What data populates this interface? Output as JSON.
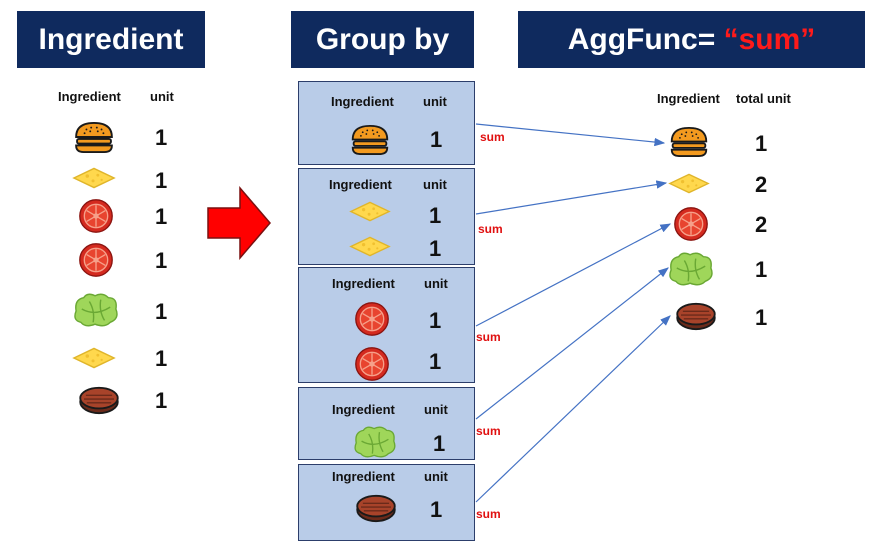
{
  "titles": {
    "left": "Ingredient",
    "middle": "Group by",
    "right_prefix": "AggFunc= ",
    "right_accent": "“sum”"
  },
  "left_table": {
    "col_ingredient": "Ingredient",
    "col_unit": "unit",
    "rows": [
      {
        "ingredient": "bun-icon",
        "unit": "1"
      },
      {
        "ingredient": "cheese-icon",
        "unit": "1"
      },
      {
        "ingredient": "tomato-icon",
        "unit": "1"
      },
      {
        "ingredient": "tomato-icon",
        "unit": "1"
      },
      {
        "ingredient": "lettuce-icon",
        "unit": "1"
      },
      {
        "ingredient": "cheese-icon",
        "unit": "1"
      },
      {
        "ingredient": "patty-icon",
        "unit": "1"
      }
    ]
  },
  "groups": [
    {
      "col_ingredient": "Ingredient",
      "col_unit": "unit",
      "agg": "sum",
      "items": [
        {
          "icon": "bun-icon",
          "unit": "1"
        }
      ]
    },
    {
      "col_ingredient": "Ingredient",
      "col_unit": "unit",
      "agg": "sum",
      "items": [
        {
          "icon": "cheese-icon",
          "unit": "1"
        },
        {
          "icon": "cheese-icon",
          "unit": "1"
        }
      ]
    },
    {
      "col_ingredient": "Ingredient",
      "col_unit": "unit",
      "agg": "sum",
      "items": [
        {
          "icon": "tomato-icon",
          "unit": "1"
        },
        {
          "icon": "tomato-icon",
          "unit": "1"
        }
      ]
    },
    {
      "col_ingredient": "Ingredient",
      "col_unit": "unit",
      "agg": "sum",
      "items": [
        {
          "icon": "lettuce-icon",
          "unit": "1"
        }
      ]
    },
    {
      "col_ingredient": "Ingredient",
      "col_unit": "unit",
      "agg": "sum",
      "items": [
        {
          "icon": "patty-icon",
          "unit": "1"
        }
      ]
    }
  ],
  "result_table": {
    "col_ingredient": "Ingredient",
    "col_total": "total unit",
    "rows": [
      {
        "ingredient": "bun-icon",
        "total": "1"
      },
      {
        "ingredient": "cheese-icon",
        "total": "2"
      },
      {
        "ingredient": "tomato-icon",
        "total": "2"
      },
      {
        "ingredient": "lettuce-icon",
        "total": "1"
      },
      {
        "ingredient": "patty-icon",
        "total": "1"
      }
    ]
  },
  "colors": {
    "title_bg": "#0f2a5e",
    "accent": "#ff1a1a",
    "group_bg": "#b9cce8",
    "arrow_line": "#4472c4",
    "big_arrow": "#ff0000"
  }
}
